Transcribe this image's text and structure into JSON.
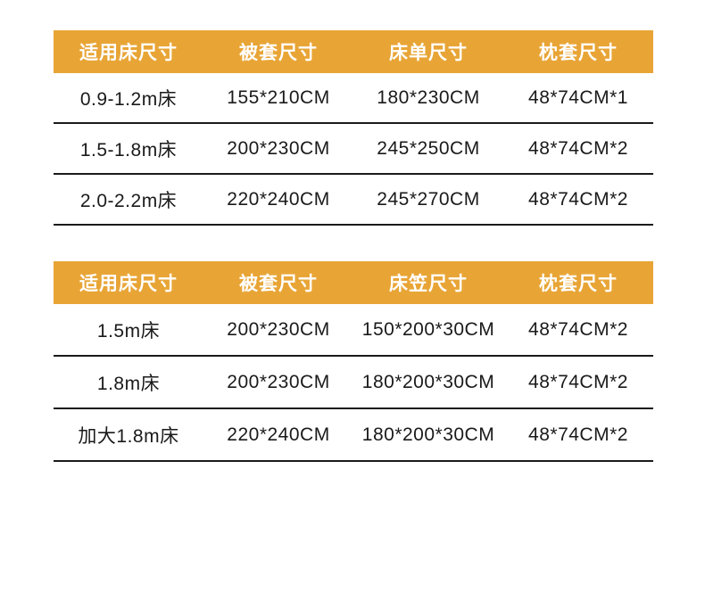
{
  "colors": {
    "header_bg": "#E8A536",
    "header_text": "#FFFFFF",
    "body_text": "#1A1A1A",
    "row_divider": "#1A1A1A",
    "page_bg": "#FFFFFF"
  },
  "chart_data": [
    {
      "type": "table",
      "title": "",
      "headers": [
        "适用床尺寸",
        "被套尺寸",
        "床单尺寸",
        "枕套尺寸"
      ],
      "rows": [
        [
          "0.9-1.2m床",
          "155*210CM",
          "180*230CM",
          "48*74CM*1"
        ],
        [
          "1.5-1.8m床",
          "200*230CM",
          "245*250CM",
          "48*74CM*2"
        ],
        [
          "2.0-2.2m床",
          "220*240CM",
          "245*270CM",
          "48*74CM*2"
        ]
      ]
    },
    {
      "type": "table",
      "title": "",
      "headers": [
        "适用床尺寸",
        "被套尺寸",
        "床笠尺寸",
        "枕套尺寸"
      ],
      "rows": [
        [
          "1.5m床",
          "200*230CM",
          "150*200*30CM",
          "48*74CM*2"
        ],
        [
          "1.8m床",
          "200*230CM",
          "180*200*30CM",
          "48*74CM*2"
        ],
        [
          "加大1.8m床",
          "220*240CM",
          "180*200*30CM",
          "48*74CM*2"
        ]
      ]
    }
  ]
}
